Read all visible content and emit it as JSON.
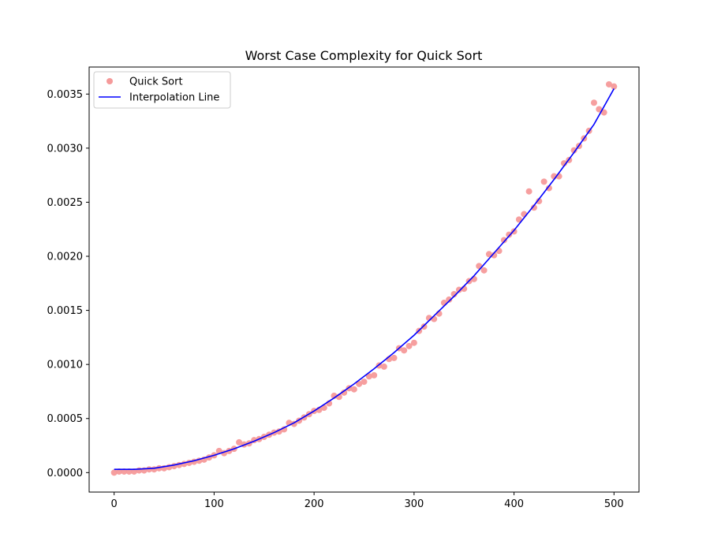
{
  "chart_data": {
    "type": "scatter",
    "title": "Worst Case Complexity for Quick Sort",
    "xlabel": "",
    "ylabel": "",
    "xlim": [
      -25,
      525
    ],
    "ylim": [
      -0.00018,
      0.00375
    ],
    "xticks": [
      0,
      100,
      200,
      300,
      400,
      500
    ],
    "yticks": [
      0.0,
      0.0005,
      0.001,
      0.0015,
      0.002,
      0.0025,
      0.003,
      0.0035
    ],
    "xtick_labels": [
      "0",
      "100",
      "200",
      "300",
      "400",
      "500"
    ],
    "ytick_labels": [
      "0.0000",
      "0.0005",
      "0.0010",
      "0.0015",
      "0.0020",
      "0.0025",
      "0.0030",
      "0.0035"
    ],
    "grid": false,
    "legend_position": "top-left",
    "series": [
      {
        "name": "Quick Sort",
        "kind": "scatter",
        "color": "#f59a9a",
        "x": [
          0,
          5,
          10,
          15,
          20,
          25,
          30,
          35,
          40,
          45,
          50,
          55,
          60,
          65,
          70,
          75,
          80,
          85,
          90,
          95,
          100,
          105,
          110,
          115,
          120,
          125,
          130,
          135,
          140,
          145,
          150,
          155,
          160,
          165,
          170,
          175,
          180,
          185,
          190,
          195,
          200,
          205,
          210,
          215,
          220,
          225,
          230,
          235,
          240,
          245,
          250,
          255,
          260,
          265,
          270,
          275,
          280,
          285,
          290,
          295,
          300,
          305,
          310,
          315,
          320,
          325,
          330,
          335,
          340,
          345,
          350,
          355,
          360,
          365,
          370,
          375,
          380,
          385,
          390,
          395,
          400,
          405,
          410,
          415,
          420,
          425,
          430,
          435,
          440,
          445,
          450,
          455,
          460,
          465,
          470,
          475,
          480,
          485,
          490,
          495,
          500
        ],
        "y": [
          0.0,
          1e-05,
          1e-05,
          1e-05,
          1e-05,
          2e-05,
          2e-05,
          3e-05,
          3e-05,
          4e-05,
          4e-05,
          5e-05,
          6e-05,
          7e-05,
          8e-05,
          9e-05,
          0.0001,
          0.00011,
          0.00012,
          0.00014,
          0.00016,
          0.0002,
          0.00018,
          0.0002,
          0.00022,
          0.00028,
          0.00026,
          0.00027,
          0.0003,
          0.00031,
          0.00033,
          0.00035,
          0.00037,
          0.00038,
          0.0004,
          0.00046,
          0.00045,
          0.00048,
          0.00051,
          0.00054,
          0.00057,
          0.00058,
          0.0006,
          0.00064,
          0.00071,
          0.0007,
          0.00074,
          0.00078,
          0.00077,
          0.00082,
          0.00084,
          0.00089,
          0.0009,
          0.00099,
          0.00098,
          0.00105,
          0.00106,
          0.00115,
          0.00113,
          0.00117,
          0.0012,
          0.00131,
          0.00135,
          0.00143,
          0.00142,
          0.00147,
          0.00157,
          0.0016,
          0.00165,
          0.00169,
          0.0017,
          0.00177,
          0.00179,
          0.00191,
          0.00187,
          0.00202,
          0.00201,
          0.00205,
          0.00215,
          0.0022,
          0.00223,
          0.00234,
          0.00239,
          0.0026,
          0.00245,
          0.00251,
          0.00269,
          0.00263,
          0.00274,
          0.00274,
          0.00286,
          0.00289,
          0.00298,
          0.00302,
          0.00309,
          0.00316,
          0.00342,
          0.00336,
          0.00333,
          0.00359,
          0.00357
        ]
      },
      {
        "name": "Interpolation Line",
        "kind": "line",
        "color": "#0000ff",
        "x": [
          0,
          20,
          40,
          60,
          80,
          100,
          120,
          140,
          160,
          180,
          200,
          220,
          240,
          260,
          280,
          300,
          320,
          340,
          360,
          380,
          400,
          420,
          440,
          460,
          480,
          500
        ],
        "y": [
          3e-05,
          3e-05,
          4e-05,
          7e-05,
          0.00011,
          0.00016,
          0.00022,
          0.00029,
          0.00037,
          0.00046,
          0.00057,
          0.00069,
          0.00082,
          0.00096,
          0.00111,
          0.00127,
          0.00145,
          0.00163,
          0.00182,
          0.00203,
          0.00224,
          0.00247,
          0.00271,
          0.00296,
          0.00322,
          0.00355
        ]
      }
    ]
  }
}
